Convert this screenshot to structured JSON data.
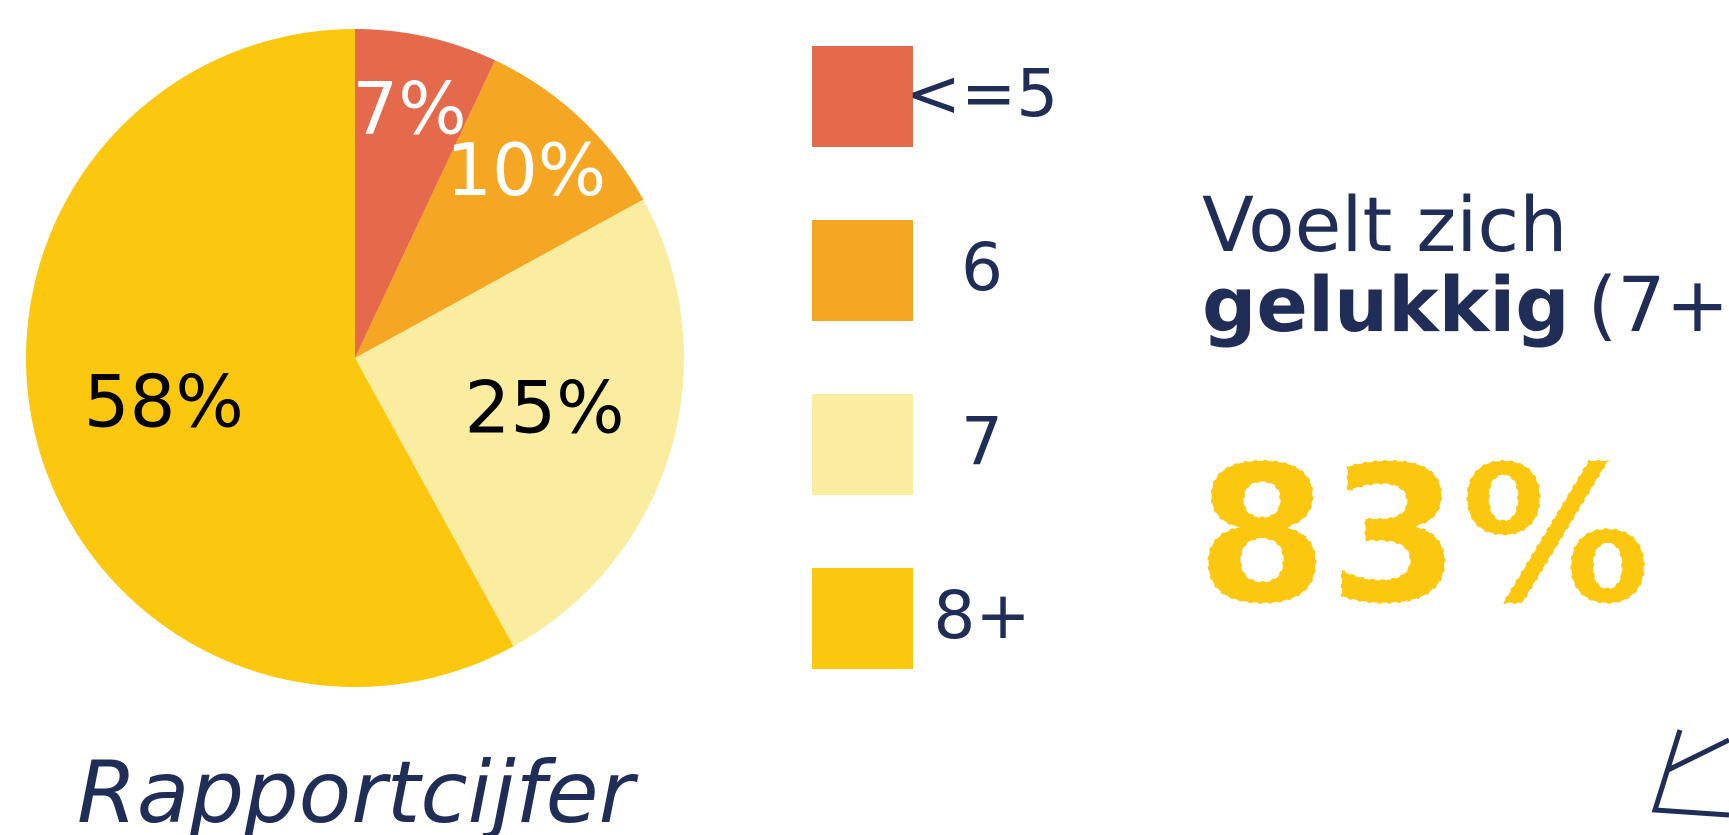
{
  "chart_data": {
    "type": "pie",
    "title": "Rapportcijfer",
    "categories": [
      "<=5",
      "6",
      "7",
      "8+"
    ],
    "values": [
      7,
      10,
      25,
      58
    ],
    "value_labels": [
      "7%",
      "10%",
      "25%",
      "58%"
    ],
    "colors": [
      "#E5694B",
      "#F5A623",
      "#FAEDA0",
      "#FCC70F"
    ],
    "annotations": [
      "Voelt zich",
      "gelukkig",
      "(7+)",
      "83%"
    ]
  }
}
